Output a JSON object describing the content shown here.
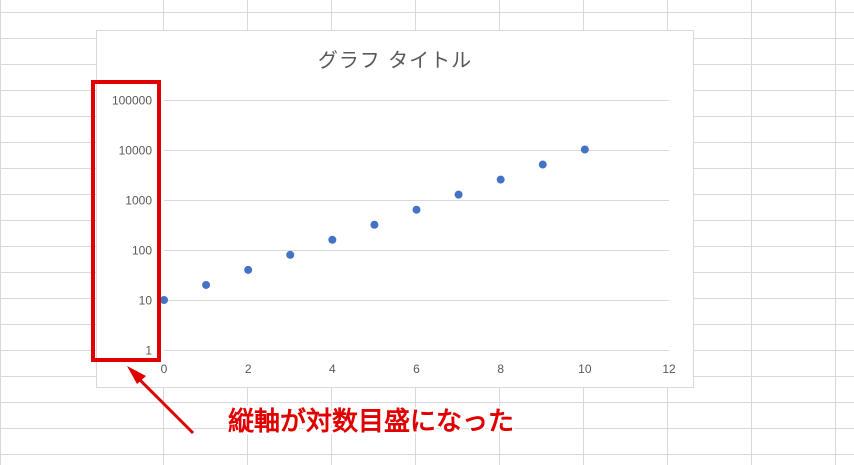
{
  "spreadsheet": {
    "gridline_color": "#d9d9d9"
  },
  "chart_data": {
    "type": "scatter",
    "title": "グラフ タイトル",
    "x": [
      0,
      1,
      2,
      3,
      4,
      5,
      6,
      7,
      8,
      9,
      10
    ],
    "y": [
      10,
      20,
      40,
      80,
      160,
      320,
      640,
      1280,
      2560,
      5120,
      10240
    ],
    "xlim": [
      0,
      12
    ],
    "ylim": [
      1,
      100000
    ],
    "y_scale": "log",
    "x_ticks": [
      "0",
      "2",
      "4",
      "6",
      "8",
      "10",
      "12"
    ],
    "y_ticks": [
      "1",
      "10",
      "100",
      "1000",
      "10000",
      "100000"
    ],
    "grid": true,
    "legend": "none",
    "marker_color": "#4472c4"
  },
  "annotation": {
    "text": "縦軸が対数目盛になった",
    "color": "#e00000"
  }
}
